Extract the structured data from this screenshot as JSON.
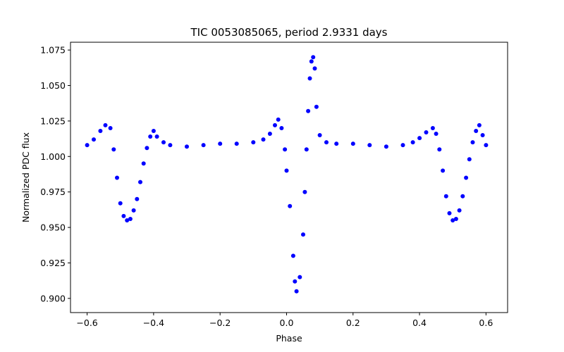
{
  "chart_data": {
    "type": "scatter",
    "title": "TIC 0053085065, period 2.9331 days",
    "xlabel": "Phase",
    "ylabel": "Normalized PDC flux",
    "xlim": [
      -0.65,
      0.665
    ],
    "ylim": [
      0.89,
      1.0805
    ],
    "x_ticks": [
      -0.6,
      -0.4,
      -0.2,
      0.0,
      0.2,
      0.4,
      0.6
    ],
    "x_tick_labels": [
      "−0.6",
      "−0.4",
      "−0.2",
      "0.0",
      "0.2",
      "0.4",
      "0.6"
    ],
    "y_ticks": [
      0.9,
      0.925,
      0.95,
      0.975,
      1.0,
      1.025,
      1.05,
      1.075
    ],
    "y_tick_labels": [
      "0.900",
      "0.925",
      "0.950",
      "0.975",
      "1.000",
      "1.025",
      "1.050",
      "1.075"
    ],
    "grid": false,
    "marker_color": "#0000ff",
    "series": [
      {
        "x": [
          -0.6,
          -0.58,
          -0.56,
          -0.545,
          -0.53,
          -0.52,
          -0.51,
          -0.5,
          -0.49,
          -0.48,
          -0.47,
          -0.46,
          -0.45,
          -0.44,
          -0.43,
          -0.42,
          -0.41,
          -0.4,
          -0.39,
          -0.37,
          -0.35,
          -0.3,
          -0.25,
          -0.2,
          -0.15,
          -0.1,
          -0.07,
          -0.05,
          -0.035,
          -0.025,
          -0.015,
          -0.005,
          0.0,
          0.01,
          0.02,
          0.025,
          0.03,
          0.04,
          0.05,
          0.055,
          0.06,
          0.065,
          0.07,
          0.075,
          0.08,
          0.085,
          0.09,
          0.1,
          0.12,
          0.15,
          0.2,
          0.25,
          0.3,
          0.35,
          0.38,
          0.4,
          0.42,
          0.44,
          0.45,
          0.46,
          0.47,
          0.48,
          0.49,
          0.5,
          0.51,
          0.52,
          0.53,
          0.54,
          0.55,
          0.56,
          0.57,
          0.58,
          0.59,
          0.6
        ],
        "y": [
          1.008,
          1.012,
          1.018,
          1.022,
          1.02,
          1.005,
          0.985,
          0.967,
          0.958,
          0.955,
          0.956,
          0.962,
          0.97,
          0.982,
          0.995,
          1.006,
          1.014,
          1.018,
          1.014,
          1.01,
          1.008,
          1.007,
          1.008,
          1.009,
          1.009,
          1.01,
          1.012,
          1.016,
          1.022,
          1.026,
          1.02,
          1.005,
          0.99,
          0.965,
          0.93,
          0.912,
          0.905,
          0.915,
          0.945,
          0.975,
          1.005,
          1.032,
          1.055,
          1.067,
          1.07,
          1.062,
          1.035,
          1.015,
          1.01,
          1.009,
          1.009,
          1.008,
          1.007,
          1.008,
          1.01,
          1.013,
          1.017,
          1.02,
          1.016,
          1.005,
          0.99,
          0.972,
          0.96,
          0.955,
          0.956,
          0.962,
          0.972,
          0.985,
          0.998,
          1.01,
          1.018,
          1.022,
          1.015,
          1.008
        ]
      }
    ]
  }
}
